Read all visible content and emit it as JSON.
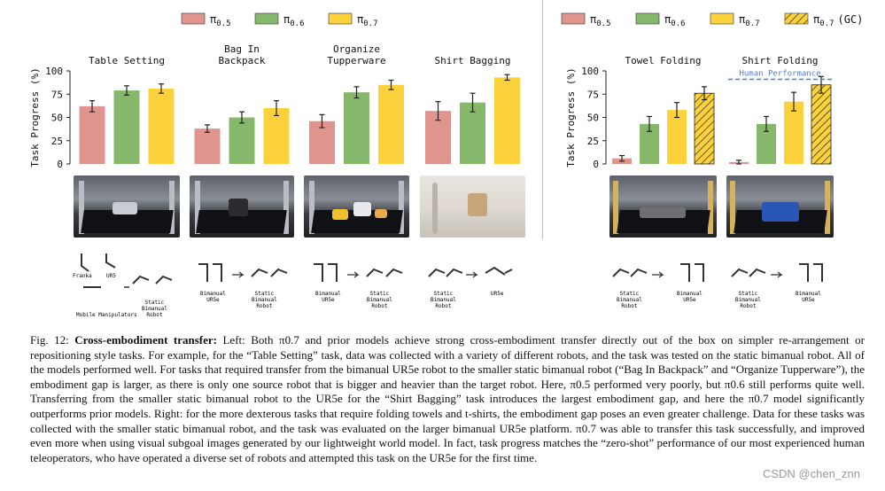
{
  "colors": {
    "pi05": "#df958d",
    "pi06": "#86b86c",
    "pi07": "#fbd23b",
    "gc_hatch": "#222222",
    "human_line": "#4f7fc9"
  },
  "legend_left": [
    {
      "label": "π",
      "sub": "0.5",
      "key": "pi05"
    },
    {
      "label": "π",
      "sub": "0.6",
      "key": "pi06"
    },
    {
      "label": "π",
      "sub": "0.7",
      "key": "pi07"
    }
  ],
  "legend_right": [
    {
      "label": "π",
      "sub": "0.5",
      "key": "pi05"
    },
    {
      "label": "π",
      "sub": "0.6",
      "key": "pi06"
    },
    {
      "label": "π",
      "sub": "0.7",
      "key": "pi07"
    },
    {
      "label": "π",
      "sub": "0.7",
      "suffix": "(GC)",
      "key": "gc"
    }
  ],
  "chart_data": [
    {
      "type": "bar",
      "title": "Table Setting",
      "ylabel": "Task Progress (%)",
      "ylim": [
        0,
        100
      ],
      "yticks": [
        0,
        25,
        50,
        75,
        100
      ],
      "series": [
        {
          "name": "π0.5",
          "values": [
            62
          ],
          "errors": [
            6
          ]
        },
        {
          "name": "π0.6",
          "values": [
            79
          ],
          "errors": [
            5
          ]
        },
        {
          "name": "π0.7",
          "values": [
            81
          ],
          "errors": [
            5
          ]
        }
      ]
    },
    {
      "type": "bar",
      "title": "Bag In\nBackpack",
      "ylim": [
        0,
        100
      ],
      "series": [
        {
          "name": "π0.5",
          "values": [
            38
          ],
          "errors": [
            4
          ]
        },
        {
          "name": "π0.6",
          "values": [
            50
          ],
          "errors": [
            6
          ]
        },
        {
          "name": "π0.7",
          "values": [
            60
          ],
          "errors": [
            8
          ]
        }
      ]
    },
    {
      "type": "bar",
      "title": "Organize\nTupperware",
      "ylim": [
        0,
        100
      ],
      "series": [
        {
          "name": "π0.5",
          "values": [
            46
          ],
          "errors": [
            7
          ]
        },
        {
          "name": "π0.6",
          "values": [
            77
          ],
          "errors": [
            6
          ]
        },
        {
          "name": "π0.7",
          "values": [
            85
          ],
          "errors": [
            5
          ]
        }
      ]
    },
    {
      "type": "bar",
      "title": "Shirt Bagging",
      "ylim": [
        0,
        100
      ],
      "series": [
        {
          "name": "π0.5",
          "values": [
            57
          ],
          "errors": [
            10
          ]
        },
        {
          "name": "π0.6",
          "values": [
            66
          ],
          "errors": [
            10
          ]
        },
        {
          "name": "π0.7",
          "values": [
            93
          ],
          "errors": [
            3
          ]
        }
      ]
    },
    {
      "type": "bar",
      "title": "Towel Folding",
      "ylabel": "Task Progress (%)",
      "ylim": [
        0,
        100
      ],
      "yticks": [
        0,
        25,
        50,
        75,
        100
      ],
      "series": [
        {
          "name": "π0.5",
          "values": [
            6
          ],
          "errors": [
            3
          ]
        },
        {
          "name": "π0.6",
          "values": [
            43
          ],
          "errors": [
            8
          ]
        },
        {
          "name": "π0.7",
          "values": [
            58
          ],
          "errors": [
            8
          ]
        },
        {
          "name": "π0.7 (GC)",
          "values": [
            76
          ],
          "errors": [
            7
          ]
        }
      ]
    },
    {
      "type": "bar",
      "title": "Shirt Folding",
      "ylim": [
        0,
        100
      ],
      "annotation": "Human Performance",
      "human_performance": 91,
      "series": [
        {
          "name": "π0.5",
          "values": [
            2
          ],
          "errors": [
            2
          ]
        },
        {
          "name": "π0.6",
          "values": [
            43
          ],
          "errors": [
            8
          ]
        },
        {
          "name": "π0.7",
          "values": [
            67
          ],
          "errors": [
            10
          ]
        },
        {
          "name": "π0.7 (GC)",
          "values": [
            85
          ],
          "errors": [
            9
          ]
        }
      ]
    }
  ],
  "robot_labels": {
    "table_setting": [
      "Franka",
      "UR5",
      "Mobile Manipulators",
      "Static\nBimanual\nRobot"
    ],
    "bag_in_backpack": [
      "Bimanual\nUR5e",
      "Static\nBimanual\nRobot"
    ],
    "organize_tupperware": [
      "Bimanual\nUR5e",
      "Static\nBimanual\nRobot"
    ],
    "shirt_bagging": [
      "Static\nBimanual\nRobot",
      "UR5e"
    ],
    "towel_folding": [
      "Static\nBimanual\nRobot",
      "Bimanual\nUR5e"
    ],
    "shirt_folding": [
      "Static\nBimanual\nRobot",
      "Bimanual\nUR5e"
    ]
  },
  "caption": {
    "prefix": "Fig. 12:",
    "bold": "Cross-embodiment transfer:",
    "text": "Left: Both π0.7 and prior models achieve strong cross-embodiment transfer directly out of the box on simpler re-arrangement or repositioning style tasks. For example, for the “Table Setting” task, data was collected with a variety of different robots, and the task was tested on the static bimanual robot. All of the models performed well. For tasks that required transfer from the bimanual UR5e robot to the smaller static bimanual robot (“Bag In Backpack” and “Organize Tupperware”), the embodiment gap is larger, as there is only one source robot that is bigger and heavier than the target robot. Here, π0.5 performed very poorly, but π0.6 still performs quite well. Transferring from the smaller static bimanual robot to the UR5e for the “Shirt Bagging” task introduces the largest embodiment gap, and here the π0.7 model significantly outperforms prior models. Right: for the more dexterous tasks that require folding towels and t-shirts, the embodiment gap poses an even greater challenge. Data for these tasks was collected with the smaller static bimanual robot, and the task was evaluated on the larger bimanual UR5e platform. π0.7 was able to transfer this task successfully, and improved even more when using visual subgoal images generated by our lightweight world model. In fact, task progress matches the “zero-shot” performance of our most experienced human teleoperators, who have operated a diverse set of robots and attempted this task on the UR5e for the first time."
  },
  "watermark": "CSDN @chen_znn"
}
